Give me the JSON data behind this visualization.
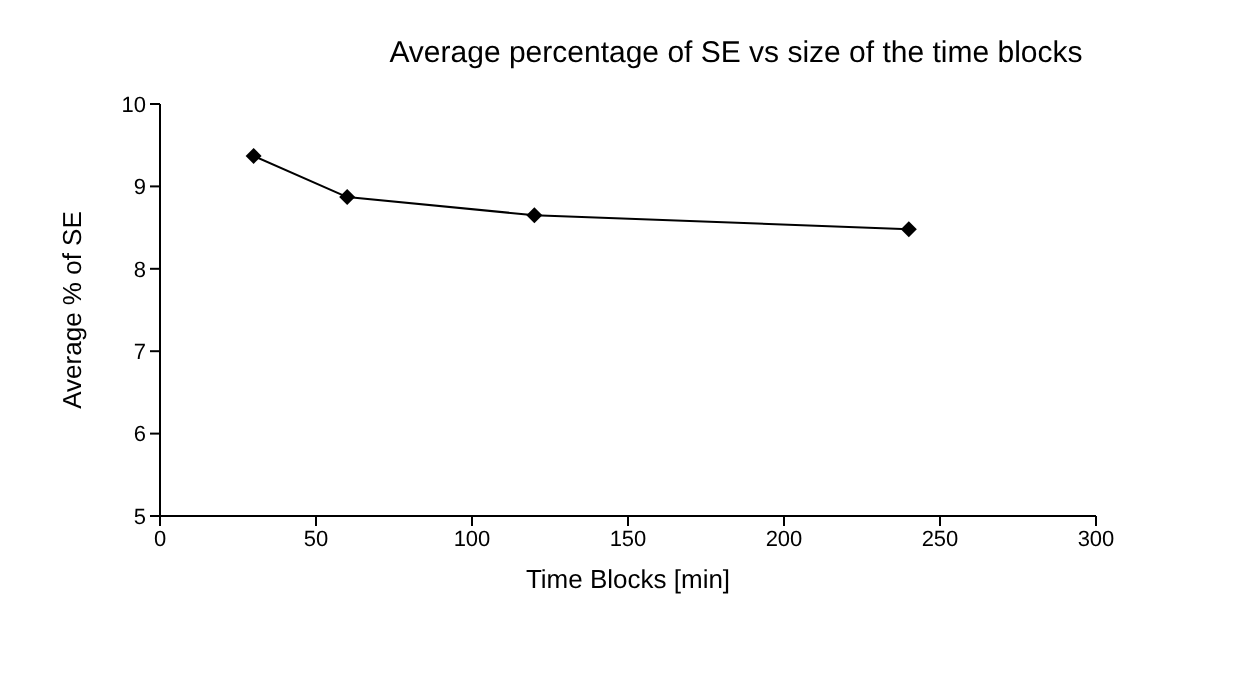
{
  "chart_data": {
    "type": "line",
    "title": "Average percentage of SE vs size of the time blocks",
    "xlabel": "Time Blocks [min]",
    "ylabel": "Average % of SE",
    "x": [
      30,
      60,
      120,
      240
    ],
    "series": [
      {
        "color": "#000000",
        "values": [
          9.37,
          8.87,
          8.65,
          8.48
        ]
      }
    ],
    "xlim": [
      0,
      300
    ],
    "xticks": [
      0,
      50,
      100,
      150,
      200,
      250,
      300
    ],
    "ylim": [
      5,
      10
    ],
    "yticks": [
      5,
      6,
      7,
      8,
      9,
      10
    ],
    "marker": "diamond",
    "line_style": "solid",
    "grid": false,
    "legend": false
  }
}
